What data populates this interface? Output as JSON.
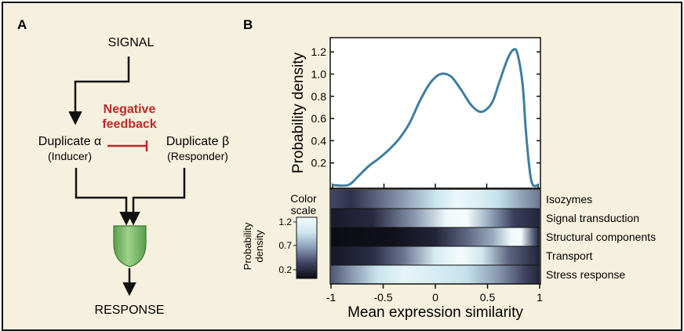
{
  "panels": {
    "a": {
      "label": "A",
      "signal": "SIGNAL",
      "feedback_line1": "Negative",
      "feedback_line2": "feedback",
      "dup_alpha": "Duplicate α",
      "dup_alpha_role": "(Inducer)",
      "dup_beta": "Duplicate β",
      "dup_beta_role": "(Responder)",
      "response": "RESPONSE"
    },
    "b": {
      "label": "B",
      "ylabel_top": "Probability density",
      "xlabel": "Mean expression similarity",
      "color_scale_line1": "Color",
      "color_scale_line2": "scale",
      "colorbar_label_line1": "Probability",
      "colorbar_label_line2": "density",
      "colorbar_ticks": [
        "1.2",
        "0.7",
        "0.2"
      ],
      "row_labels": [
        "Isozymes",
        "Signal transduction",
        "Structural components",
        "Transport",
        "Stress response"
      ]
    }
  },
  "colors": {
    "background": "#f6f1de",
    "curve": "#3f7ea0",
    "feedback": "#c0282b",
    "gate": "#7fbf6a"
  },
  "chart_data": [
    {
      "type": "line",
      "title": "",
      "xlabel": "",
      "ylabel": "Probability density",
      "xlim": [
        -1,
        1
      ],
      "ylim": [
        0,
        1.3
      ],
      "yticks": [
        "1.2",
        "1.0",
        "0.8",
        "0.6",
        "0.4",
        "0.2"
      ],
      "x": [
        -1.0,
        -0.85,
        -0.75,
        -0.65,
        -0.55,
        -0.45,
        -0.35,
        -0.25,
        -0.15,
        -0.05,
        0.05,
        0.15,
        0.25,
        0.35,
        0.45,
        0.55,
        0.62,
        0.7,
        0.76,
        0.8,
        0.85,
        0.88,
        0.92,
        0.95,
        1.0
      ],
      "y": [
        0.0,
        0.0,
        0.08,
        0.17,
        0.24,
        0.32,
        0.42,
        0.56,
        0.76,
        0.92,
        1.0,
        0.98,
        0.86,
        0.72,
        0.66,
        0.74,
        0.92,
        1.13,
        1.22,
        1.18,
        0.9,
        0.5,
        0.12,
        0.0,
        0.0
      ]
    },
    {
      "type": "heatmap",
      "xlabel": "Mean expression similarity",
      "xticks": [
        "-1",
        "-0.5",
        "0",
        "0.5",
        "1"
      ],
      "xlim": [
        -1,
        1
      ],
      "rows": [
        {
          "name": "Isozymes",
          "stops": [
            [
              -1.0,
              0.3
            ],
            [
              -0.8,
              0.22
            ],
            [
              -0.4,
              0.5
            ],
            [
              0.0,
              0.78
            ],
            [
              0.2,
              0.95
            ],
            [
              0.4,
              0.88
            ],
            [
              0.6,
              0.75
            ],
            [
              0.8,
              0.6
            ],
            [
              1.0,
              0.45
            ]
          ]
        },
        {
          "name": "Signal transduction",
          "stops": [
            [
              -1.0,
              0.1
            ],
            [
              -0.6,
              0.18
            ],
            [
              -0.2,
              0.55
            ],
            [
              0.1,
              0.95
            ],
            [
              0.3,
              1.0
            ],
            [
              0.5,
              0.62
            ],
            [
              0.75,
              0.28
            ],
            [
              1.0,
              0.15
            ]
          ]
        },
        {
          "name": "Structural components",
          "stops": [
            [
              -1.0,
              0.02
            ],
            [
              -0.4,
              0.05
            ],
            [
              0.0,
              0.15
            ],
            [
              0.3,
              0.4
            ],
            [
              0.55,
              0.6
            ],
            [
              0.72,
              0.95
            ],
            [
              0.82,
              1.0
            ],
            [
              0.92,
              0.45
            ],
            [
              1.0,
              0.12
            ]
          ]
        },
        {
          "name": "Transport",
          "stops": [
            [
              -1.0,
              0.08
            ],
            [
              -0.6,
              0.2
            ],
            [
              -0.3,
              0.45
            ],
            [
              0.0,
              0.85
            ],
            [
              0.25,
              1.0
            ],
            [
              0.45,
              0.8
            ],
            [
              0.7,
              0.4
            ],
            [
              1.0,
              0.15
            ]
          ]
        },
        {
          "name": "Stress response",
          "stops": [
            [
              -1.0,
              0.35
            ],
            [
              -0.8,
              0.55
            ],
            [
              -0.55,
              0.78
            ],
            [
              -0.3,
              0.92
            ],
            [
              0.0,
              0.85
            ],
            [
              0.3,
              0.75
            ],
            [
              0.6,
              0.55
            ],
            [
              0.85,
              0.3
            ],
            [
              1.0,
              0.15
            ]
          ]
        }
      ],
      "colorbar_ticks": [
        "1.2",
        "0.7",
        "0.2"
      ]
    }
  ]
}
